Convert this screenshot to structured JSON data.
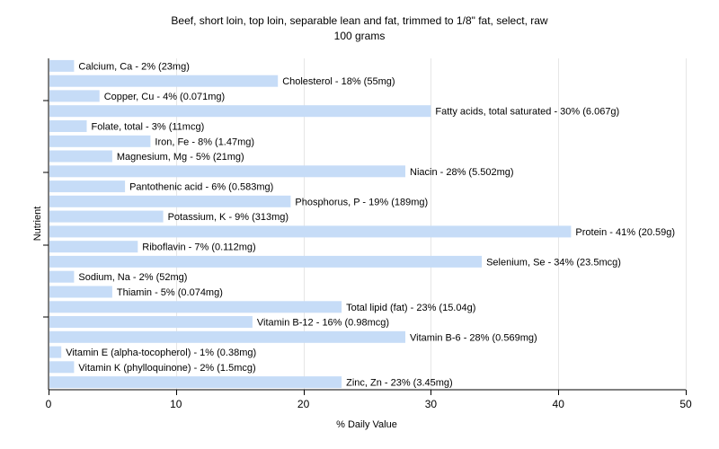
{
  "chart_data": {
    "type": "bar",
    "orientation": "horizontal",
    "title": "Beef, short loin, top loin, separable lean and fat, trimmed to 1/8\" fat, select, raw",
    "subtitle": "100 grams",
    "xlabel": "% Daily Value",
    "ylabel": "Nutrient",
    "xlim": [
      0,
      50
    ],
    "xticks": [
      0,
      10,
      20,
      30,
      40,
      50
    ],
    "grid": "vertical",
    "bar_color": "#c6dcf7",
    "categories": [
      "Calcium, Ca",
      "Cholesterol",
      "Copper, Cu",
      "Fatty acids, total saturated",
      "Folate, total",
      "Iron, Fe",
      "Magnesium, Mg",
      "Niacin",
      "Pantothenic acid",
      "Phosphorus, P",
      "Potassium, K",
      "Protein",
      "Riboflavin",
      "Selenium, Se",
      "Sodium, Na",
      "Thiamin",
      "Total lipid (fat)",
      "Vitamin B-12",
      "Vitamin B-6",
      "Vitamin E (alpha-tocopherol)",
      "Vitamin K (phylloquinone)",
      "Zinc, Zn"
    ],
    "values": [
      2,
      18,
      4,
      30,
      3,
      8,
      5,
      28,
      6,
      19,
      9,
      41,
      7,
      34,
      2,
      5,
      23,
      16,
      28,
      1,
      2,
      23
    ],
    "labels": [
      "Calcium, Ca - 2% (23mg)",
      "Cholesterol - 18% (55mg)",
      "Copper, Cu - 4% (0.071mg)",
      "Fatty acids, total saturated - 30% (6.067g)",
      "Folate, total - 3% (11mcg)",
      "Iron, Fe - 8% (1.47mg)",
      "Magnesium, Mg - 5% (21mg)",
      "Niacin - 28% (5.502mg)",
      "Pantothenic acid - 6% (0.583mg)",
      "Phosphorus, P - 19% (189mg)",
      "Potassium, K - 9% (313mg)",
      "Protein - 41% (20.59g)",
      "Riboflavin - 7% (0.112mg)",
      "Selenium, Se - 34% (23.5mcg)",
      "Sodium, Na - 2% (52mg)",
      "Thiamin - 5% (0.074mg)",
      "Total lipid (fat) - 23% (15.04g)",
      "Vitamin B-12 - 16% (0.98mcg)",
      "Vitamin B-6 - 28% (0.569mg)",
      "Vitamin E (alpha-tocopherol) - 1% (0.38mg)",
      "Vitamin K (phylloquinone) - 2% (1.5mcg)",
      "Zinc, Zn - 23% (3.45mg)"
    ]
  }
}
